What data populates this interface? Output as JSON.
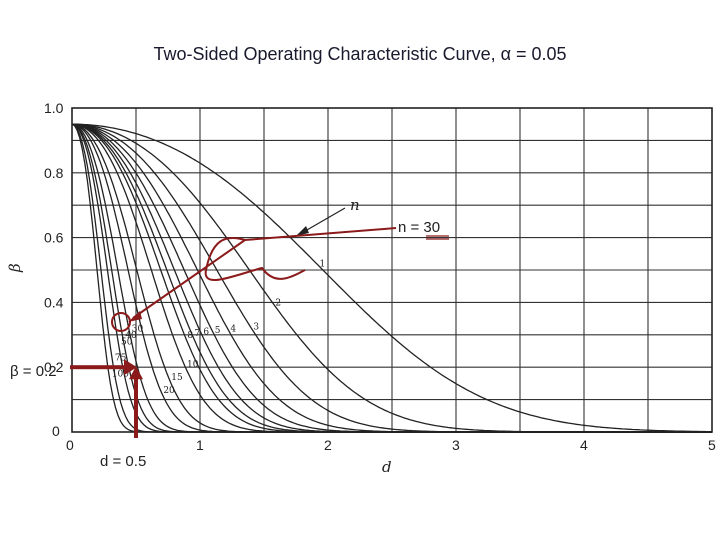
{
  "header": {
    "title": "Two-Sided Operating Characteristic Curve, α = 0.05"
  },
  "chart_data": {
    "type": "line",
    "title": "Two-Sided Operating Characteristic Curve, α = 0.05",
    "xlabel": "d",
    "ylabel": "β",
    "xlim": [
      0,
      5
    ],
    "ylim": [
      0,
      1.0
    ],
    "grid": true,
    "x_ticks": [
      "0",
      "1",
      "2",
      "3",
      "4",
      "5"
    ],
    "y_ticks": [
      "0",
      "0.2",
      "0.4",
      "0.6",
      "0.8",
      "1.0"
    ],
    "alpha": 0.05,
    "series_label": "n",
    "series": [
      {
        "name": "1"
      },
      {
        "name": "2"
      },
      {
        "name": "3"
      },
      {
        "name": "4"
      },
      {
        "name": "5"
      },
      {
        "name": "6"
      },
      {
        "name": "7"
      },
      {
        "name": "8"
      },
      {
        "name": "10"
      },
      {
        "name": "15"
      },
      {
        "name": "20"
      },
      {
        "name": "30"
      },
      {
        "name": "40"
      },
      {
        "name": "50"
      },
      {
        "name": "75"
      },
      {
        "name": "100"
      }
    ],
    "annotations": {
      "n_label": "n = 30",
      "beta_label": "β = 0.2",
      "d_label": "d = 0.5",
      "accent_color": "#8b1a1a",
      "highlight_curve": "30",
      "beta_value": 0.2,
      "d_value": 0.5
    }
  }
}
